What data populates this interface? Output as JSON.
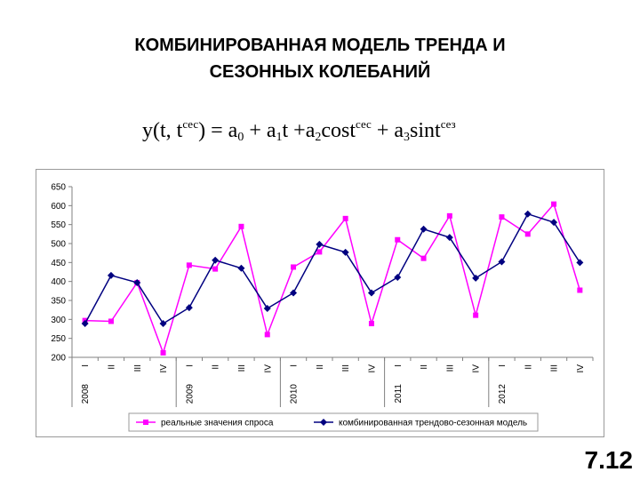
{
  "slide": {
    "title_line1": "КОМБИНИРОВАННАЯ МОДЕЛЬ ТРЕНДА И",
    "title_line2": "СЕЗОННЫХ КОЛЕБАНИЙ",
    "slide_number": "7.12"
  },
  "formula": {
    "y": "y(t, t",
    "sup1": "сес",
    "part2": ") = a",
    "sub0": "0",
    "part3": " + a",
    "sub1": "1",
    "part4": "t +a",
    "sub2": "2",
    "part5": "cost",
    "sup2": "сес",
    "part6": " + a",
    "sub3": "3",
    "part7": "sint",
    "sup3": "сез"
  },
  "chart_data": {
    "type": "line",
    "title": "",
    "xlabel": "",
    "ylabel": "",
    "ylim": [
      200,
      650
    ],
    "yticks": [
      200,
      250,
      300,
      350,
      400,
      450,
      500,
      550,
      600,
      650
    ],
    "grid": false,
    "legend_position": "bottom",
    "categories": [
      "I",
      "II",
      "III",
      "IV",
      "I",
      "II",
      "III",
      "IV",
      "I",
      "II",
      "III",
      "IV",
      "I",
      "II",
      "III",
      "IV",
      "I",
      "II",
      "III",
      "IV"
    ],
    "years": [
      {
        "label": "2008",
        "index": 0
      },
      {
        "label": "2009",
        "index": 4
      },
      {
        "label": "2010",
        "index": 8
      },
      {
        "label": "2011",
        "index": 12
      },
      {
        "label": "2012",
        "index": 16
      }
    ],
    "series": [
      {
        "name": "реальные значения спроса",
        "color": "#ff00ff",
        "marker": "square",
        "values": [
          297,
          295,
          397,
          212,
          443,
          433,
          545,
          260,
          438,
          478,
          566,
          289,
          510,
          461,
          573,
          311,
          570,
          525,
          604,
          377
        ]
      },
      {
        "name": "комбинированная трендово-сезонная модель",
        "color": "#000080",
        "marker": "diamond",
        "values": [
          289,
          416,
          397,
          289,
          331,
          456,
          435,
          329,
          370,
          498,
          477,
          370,
          411,
          538,
          516,
          409,
          452,
          578,
          556,
          450
        ]
      }
    ]
  }
}
